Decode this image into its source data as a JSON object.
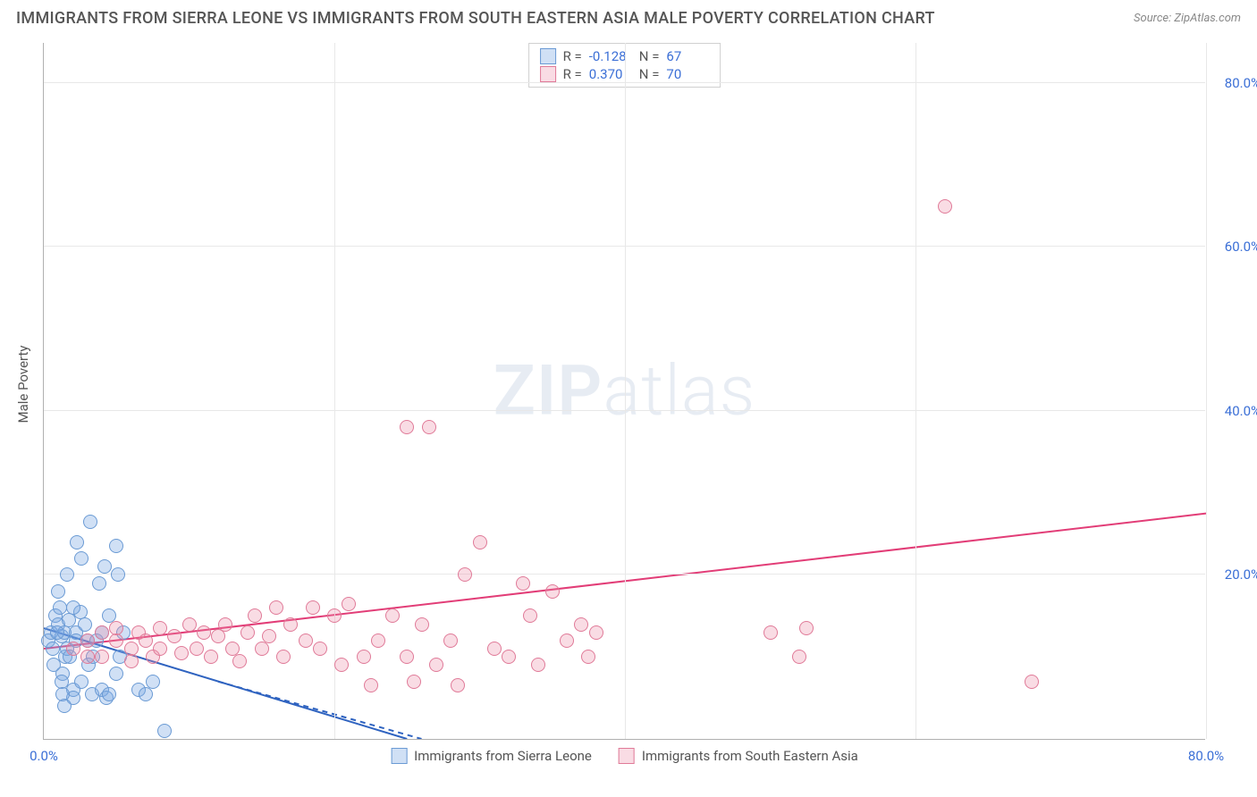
{
  "title": "IMMIGRANTS FROM SIERRA LEONE VS IMMIGRANTS FROM SOUTH EASTERN ASIA MALE POVERTY CORRELATION CHART",
  "source": "Source: ZipAtlas.com",
  "watermark": {
    "part1": "ZIP",
    "part2": "atlas"
  },
  "ylabel": "Male Poverty",
  "chart": {
    "type": "scatter",
    "xlim": [
      0,
      80
    ],
    "ylim": [
      0,
      85
    ],
    "xticks": [
      0,
      20,
      40,
      60,
      80
    ],
    "yticks": [
      20,
      40,
      60,
      80
    ],
    "xtick_labels": [
      "0.0%",
      "",
      "",
      "",
      "80.0%"
    ],
    "ytick_labels": [
      "20.0%",
      "40.0%",
      "60.0%",
      "80.0%"
    ],
    "grid_color": "#e8e8e8",
    "axis_color": "#b0b0b0",
    "background_color": "#ffffff",
    "tick_label_color": "#3b6fd6",
    "marker_radius": 8,
    "marker_stroke_width": 1.5,
    "trend_line_width": 2
  },
  "series": [
    {
      "name": "Immigrants from Sierra Leone",
      "id": "sierra",
      "fill_color": "rgba(120,165,225,0.35)",
      "stroke_color": "#6a9ad4",
      "trend_color": "#2f63c0",
      "R_label": "R =",
      "R": "-0.128",
      "N_label": "N =",
      "N": "67",
      "trend": {
        "x1": 0,
        "y1": 13.5,
        "x2": 25,
        "y2": 0,
        "dashed": false
      },
      "trend_ext": {
        "x1": 12,
        "y1": 7,
        "x2": 26,
        "y2": 0,
        "dashed": true
      },
      "points": [
        [
          0.3,
          12
        ],
        [
          0.5,
          13
        ],
        [
          0.6,
          11
        ],
        [
          0.8,
          15
        ],
        [
          0.7,
          9
        ],
        [
          1.0,
          14
        ],
        [
          1.2,
          12.5
        ],
        [
          1.1,
          16
        ],
        [
          1.4,
          13
        ],
        [
          1.5,
          10
        ],
        [
          1.7,
          14.5
        ],
        [
          1.3,
          8
        ],
        [
          1.6,
          11
        ],
        [
          2.0,
          6
        ],
        [
          2.2,
          13
        ],
        [
          1.0,
          18
        ],
        [
          2.5,
          15.5
        ],
        [
          1.2,
          7
        ],
        [
          2.0,
          5
        ],
        [
          2.2,
          12
        ],
        [
          1.8,
          10
        ],
        [
          0.9,
          13
        ],
        [
          1.3,
          5.5
        ],
        [
          2.8,
          14
        ],
        [
          3.1,
          9
        ],
        [
          3.3,
          5.5
        ],
        [
          1.4,
          4
        ],
        [
          2.0,
          16
        ],
        [
          2.6,
          7
        ],
        [
          3.0,
          12
        ],
        [
          3.4,
          10
        ],
        [
          3.6,
          12
        ],
        [
          4.0,
          6
        ],
        [
          4.3,
          5
        ],
        [
          4.5,
          15
        ],
        [
          4.0,
          13
        ],
        [
          4.5,
          5.5
        ],
        [
          5.0,
          8
        ],
        [
          5.2,
          10
        ],
        [
          5.5,
          13
        ],
        [
          1.6,
          20
        ],
        [
          2.3,
          24
        ],
        [
          2.6,
          22
        ],
        [
          3.2,
          26.5
        ],
        [
          3.8,
          19
        ],
        [
          4.2,
          21
        ],
        [
          5.0,
          23.5
        ],
        [
          5.1,
          20
        ],
        [
          6.5,
          6
        ],
        [
          7.0,
          5.5
        ],
        [
          7.5,
          7
        ],
        [
          8.3,
          1
        ]
      ]
    },
    {
      "name": "Immigrants from South Eastern Asia",
      "id": "asia",
      "fill_color": "rgba(235,140,165,0.30)",
      "stroke_color": "#e07a98",
      "trend_color": "#e23d77",
      "R_label": "R =",
      "R": "0.370",
      "N_label": "N =",
      "N": "70",
      "trend": {
        "x1": 0,
        "y1": 11,
        "x2": 80,
        "y2": 27.5,
        "dashed": false
      },
      "points": [
        [
          2,
          11
        ],
        [
          3,
          12
        ],
        [
          3,
          10
        ],
        [
          4,
          13
        ],
        [
          4,
          10
        ],
        [
          5,
          12
        ],
        [
          5,
          13.5
        ],
        [
          6,
          11
        ],
        [
          6,
          9.5
        ],
        [
          6.5,
          13
        ],
        [
          7,
          12
        ],
        [
          7.5,
          10
        ],
        [
          8,
          13.5
        ],
        [
          8,
          11
        ],
        [
          9,
          12.5
        ],
        [
          9.5,
          10.5
        ],
        [
          10,
          14
        ],
        [
          10.5,
          11
        ],
        [
          11,
          13
        ],
        [
          11.5,
          10
        ],
        [
          12,
          12.5
        ],
        [
          12.5,
          14
        ],
        [
          13,
          11
        ],
        [
          13.5,
          9.5
        ],
        [
          14,
          13
        ],
        [
          14.5,
          15
        ],
        [
          15,
          11
        ],
        [
          15.5,
          12.5
        ],
        [
          16,
          16
        ],
        [
          16.5,
          10
        ],
        [
          17,
          14
        ],
        [
          18,
          12
        ],
        [
          18.5,
          16
        ],
        [
          19,
          11
        ],
        [
          20,
          15
        ],
        [
          20.5,
          9
        ],
        [
          21,
          16.5
        ],
        [
          22,
          10
        ],
        [
          22.5,
          6.5
        ],
        [
          23,
          12
        ],
        [
          24,
          15
        ],
        [
          25,
          10
        ],
        [
          25.5,
          7
        ],
        [
          26,
          14
        ],
        [
          27,
          9
        ],
        [
          28,
          12
        ],
        [
          28.5,
          6.5
        ],
        [
          29,
          20
        ],
        [
          30,
          24
        ],
        [
          31,
          11
        ],
        [
          32,
          10
        ],
        [
          33,
          19
        ],
        [
          33.5,
          15
        ],
        [
          34,
          9
        ],
        [
          35,
          18
        ],
        [
          36,
          12
        ],
        [
          37,
          14
        ],
        [
          37.5,
          10
        ],
        [
          38,
          13
        ],
        [
          25,
          38
        ],
        [
          26.5,
          38
        ],
        [
          50,
          13
        ],
        [
          52,
          10
        ],
        [
          52.5,
          13.5
        ],
        [
          62,
          65
        ],
        [
          68,
          7
        ]
      ]
    }
  ],
  "bottom_legend": [
    {
      "series": "sierra",
      "label": "Immigrants from Sierra Leone"
    },
    {
      "series": "asia",
      "label": "Immigrants from South Eastern Asia"
    }
  ]
}
